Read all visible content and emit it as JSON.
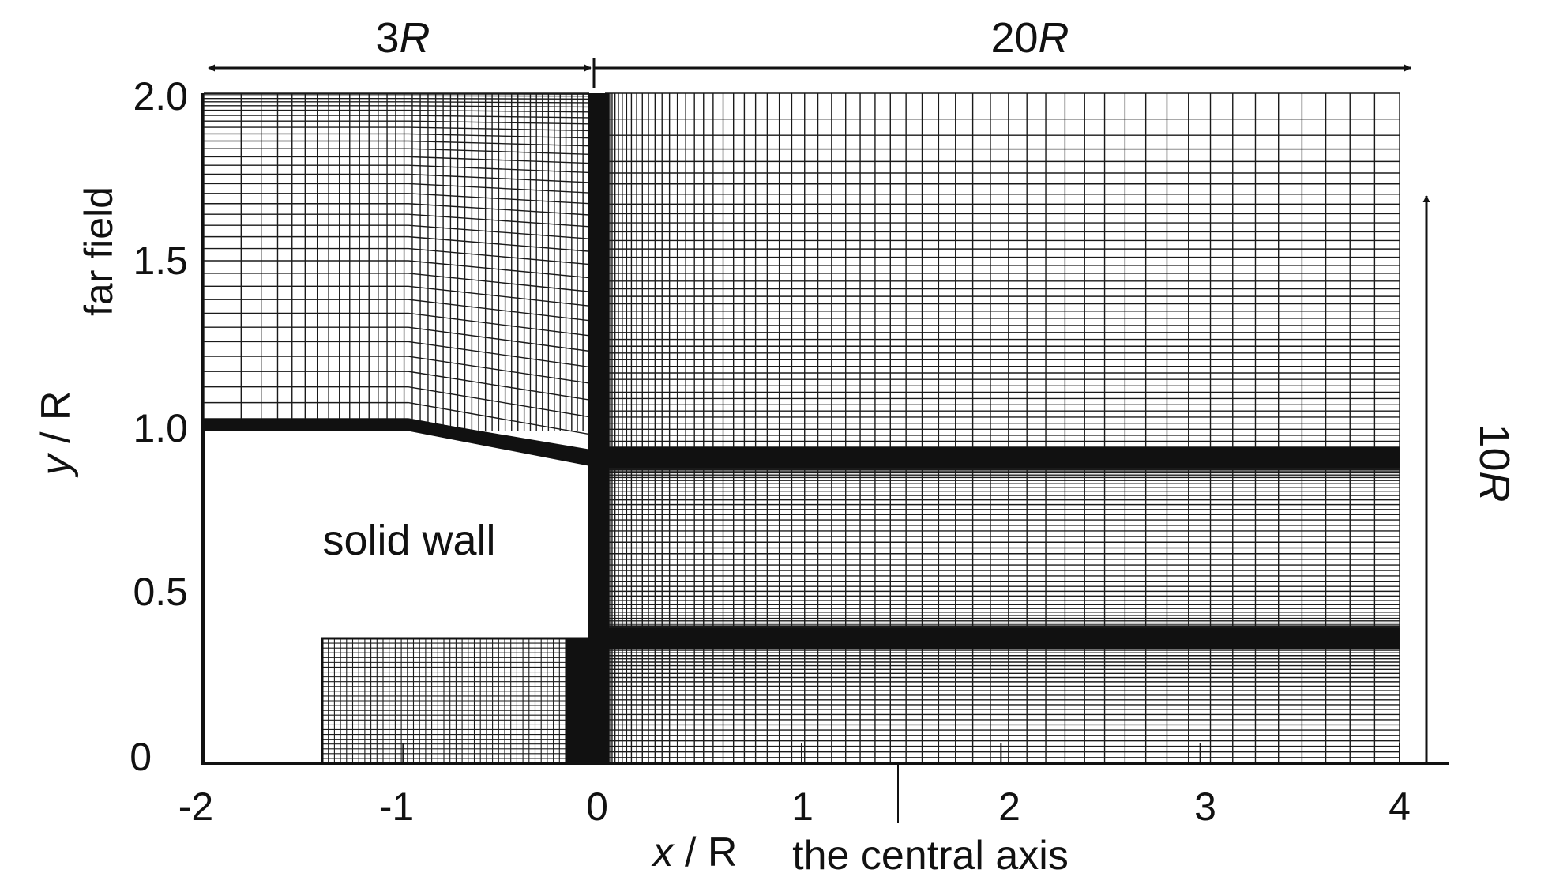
{
  "figure": {
    "dimensions": {
      "upstream": {
        "value": "3",
        "unit": "R"
      },
      "downstream": {
        "value": "20",
        "unit": "R"
      },
      "vertical": {
        "value": "10",
        "unit": "R"
      }
    },
    "labels": {
      "far_field": "far field",
      "solid_wall": "solid wall",
      "central_axis": "the central axis"
    },
    "axes": {
      "x": {
        "var": "x",
        "rest": " / R",
        "ticks": [
          "-2",
          "-1",
          "0",
          "1",
          "2",
          "3",
          "4"
        ]
      },
      "y": {
        "var": "y",
        "rest": " / R",
        "ticks": [
          "0",
          "0.5",
          "1.0",
          "1.5",
          "2.0"
        ]
      }
    },
    "colors": {
      "ink": "#111111",
      "mesh": "#1a1a1a",
      "background": "#ffffff"
    }
  }
}
